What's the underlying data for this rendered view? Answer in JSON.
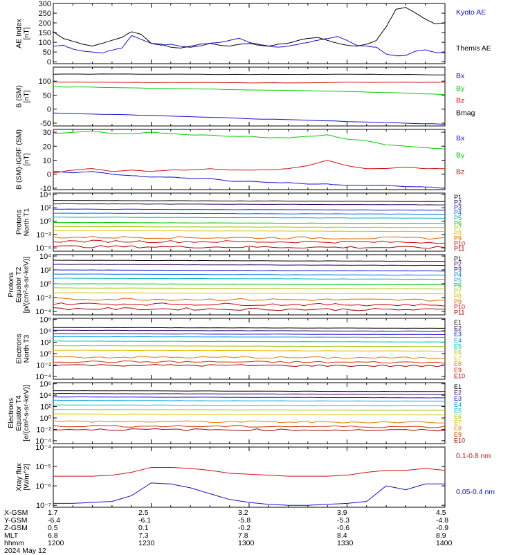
{
  "colors": {
    "black": "#000000",
    "blue": "#1010d0",
    "green": "#00cc00",
    "red": "#d01010",
    "axis": "#000000"
  },
  "chart_data": [
    {
      "type": "line",
      "id": "ae",
      "ylabel": [
        "AE Index",
        "[nT]"
      ],
      "ylim": [
        -10,
        300
      ],
      "yticks": [
        0,
        50,
        100,
        150,
        200,
        250,
        300
      ],
      "ytick_labels": [
        "0",
        "50",
        "100",
        "150",
        "200",
        "250",
        "300"
      ],
      "x": [
        0,
        5,
        10,
        15,
        20,
        25,
        30,
        35,
        40,
        45,
        50,
        55,
        60,
        65,
        70,
        75,
        80,
        85,
        90,
        95,
        100,
        105,
        110,
        115,
        120,
        125,
        130,
        135,
        140,
        145,
        150,
        155,
        160,
        165,
        170,
        175,
        180,
        185,
        190,
        195,
        200
      ],
      "series": [
        {
          "name": "Kyoto AE",
          "color": "blue",
          "values": [
            80,
            85,
            65,
            55,
            50,
            45,
            60,
            70,
            135,
            115,
            95,
            85,
            90,
            80,
            75,
            80,
            95,
            100,
            110,
            120,
            100,
            90,
            80,
            75,
            80,
            90,
            100,
            110,
            120,
            130,
            110,
            85,
            80,
            75,
            40,
            30,
            32,
            55,
            62,
            48,
            45
          ]
        },
        {
          "name": "Themis AE",
          "color": "black",
          "values": [
            155,
            120,
            105,
            90,
            80,
            95,
            110,
            125,
            155,
            140,
            95,
            90,
            75,
            70,
            80,
            90,
            95,
            85,
            80,
            90,
            95,
            85,
            80,
            90,
            95,
            110,
            120,
            125,
            110,
            95,
            85,
            80,
            90,
            110,
            180,
            270,
            280,
            250,
            220,
            195,
            200
          ]
        }
      ]
    },
    {
      "type": "line",
      "id": "bsm",
      "ylabel": [
        "B (SM)",
        "[nT]"
      ],
      "ylim": [
        -60,
        150
      ],
      "yticks": [
        -50,
        0,
        50,
        100
      ],
      "ytick_labels": [
        "-50",
        "0",
        "50",
        "100"
      ],
      "x": [
        0,
        25,
        50,
        75,
        100,
        125,
        150,
        175,
        200
      ],
      "series": [
        {
          "name": "Bx",
          "color": "blue",
          "values": [
            -14,
            -18,
            -22,
            -28,
            -34,
            -39,
            -44,
            -49,
            -54
          ]
        },
        {
          "name": "By",
          "color": "green",
          "values": [
            80,
            78,
            75,
            72,
            69,
            67,
            63,
            58,
            52
          ]
        },
        {
          "name": "Bz",
          "color": "red",
          "values": [
            97,
            96,
            95,
            95,
            94,
            94,
            96,
            96,
            96
          ]
        },
        {
          "name": "Bmag",
          "color": "black",
          "values": [
            125,
            125,
            125,
            124,
            124,
            124,
            125,
            124,
            122
          ]
        }
      ]
    },
    {
      "type": "line",
      "id": "bdiff",
      "ylabel": [
        "B (SM)-IGRF (SM)",
        "[nT]"
      ],
      "ylim": [
        -11,
        32
      ],
      "yticks": [
        -10,
        0,
        10,
        20,
        30
      ],
      "ytick_labels": [
        "-10",
        "0",
        "10",
        "20",
        "30"
      ],
      "x": [
        0,
        10,
        20,
        30,
        40,
        50,
        60,
        70,
        80,
        90,
        100,
        110,
        120,
        130,
        140,
        150,
        160,
        170,
        180,
        190,
        200
      ],
      "series": [
        {
          "name": "Bx",
          "color": "blue",
          "values": [
            2,
            1,
            2,
            0,
            -1,
            -2,
            -2,
            -3,
            -3,
            -5,
            -5,
            -6,
            -6,
            -7,
            -7,
            -8,
            -8,
            -8,
            -9,
            -9,
            -10
          ]
        },
        {
          "name": "By",
          "color": "green",
          "values": [
            29,
            30,
            31,
            29,
            29,
            30,
            29,
            28,
            28,
            27,
            27,
            26,
            26,
            27,
            28,
            25,
            24,
            21,
            20,
            19,
            18
          ]
        },
        {
          "name": "Bz",
          "color": "red",
          "values": [
            1,
            3,
            4,
            2,
            3,
            2,
            3,
            3,
            4,
            3,
            3,
            3,
            4,
            6,
            10,
            6,
            4,
            4,
            5,
            4,
            4
          ]
        }
      ]
    },
    {
      "type": "line",
      "id": "p_north",
      "log": true,
      "ylabel": [
        "Protons",
        "North T1"
      ],
      "ylim": [
        -4.5,
        4.2
      ],
      "ytick_labels": [
        "10⁴",
        "10²",
        "10⁰",
        "10⁻²",
        "10⁻⁴"
      ],
      "ytick_exps": [
        4,
        2,
        0,
        -2,
        -4
      ],
      "channels": [
        "P1",
        "P2",
        "P3",
        "P4",
        "P5",
        "P6",
        "P7",
        "P8",
        "P9",
        "P10",
        "P11"
      ],
      "channel_colors": [
        "#000000",
        "#300060",
        "#1010d0",
        "#0070e0",
        "#00b0c0",
        "#00c000",
        "#a0c000",
        "#e0c000",
        "#e06000",
        "#d00000",
        "#a00000"
      ],
      "levels": [
        3.1,
        2.6,
        1.8,
        1.2,
        0.6,
        -0.2,
        -0.8,
        -1.4,
        -2.4,
        -3.0,
        -3.8
      ]
    },
    {
      "type": "line",
      "id": "p_equator",
      "log": true,
      "ylabel": [
        "Protons",
        "Equator T2",
        "[p/(cm²-s-sr-keV)]"
      ],
      "ylim": [
        -4.5,
        4.2
      ],
      "ytick_labels": [
        "10⁴",
        "10²",
        "10⁰",
        "10⁻²",
        "10⁻⁴"
      ],
      "ytick_exps": [
        4,
        2,
        0,
        -2,
        -4
      ],
      "channels": [
        "P1",
        "P2",
        "P3",
        "P4",
        "P5",
        "P6",
        "P7",
        "P8",
        "P9",
        "P10",
        "P11"
      ],
      "channel_colors": [
        "#000000",
        "#300060",
        "#1010d0",
        "#0070e0",
        "#00b0c0",
        "#00c000",
        "#a0c000",
        "#e0c000",
        "#e06000",
        "#d00000",
        "#a00000"
      ],
      "levels": [
        3.4,
        2.8,
        2.0,
        1.4,
        0.8,
        0.0,
        -0.6,
        -1.3,
        -2.2,
        -2.9,
        -3.6
      ]
    },
    {
      "type": "line",
      "id": "e_north",
      "log": true,
      "ylabel": [
        "Electrons",
        "North T3"
      ],
      "ylim": [
        -4.5,
        6.2
      ],
      "ytick_labels": [
        "10⁶",
        "10⁴",
        "10²",
        "10⁰",
        "10⁻²",
        "10⁻⁴"
      ],
      "ytick_exps": [
        6,
        4,
        2,
        0,
        -2,
        -4
      ],
      "channels": [
        "E1",
        "E2",
        "E3",
        "E4",
        "E5",
        "E6",
        "E7",
        "E8",
        "E9",
        "E10"
      ],
      "channel_colors": [
        "#000000",
        "#300060",
        "#1010d0",
        "#00a0e0",
        "#00c0c0",
        "#a0c000",
        "#e0c000",
        "#e08000",
        "#d03000",
        "#a00000"
      ],
      "levels": [
        4.6,
        4.1,
        3.5,
        3.0,
        2.2,
        1.4,
        0.6,
        -0.6,
        -1.4,
        -2.0
      ]
    },
    {
      "type": "line",
      "id": "e_equator",
      "log": true,
      "ylabel": [
        "Electrons",
        "Equator T4",
        "[e/(cm²-s-sr-keV)]"
      ],
      "ylim": [
        -4.5,
        6.2
      ],
      "ytick_labels": [
        "10⁶",
        "10⁴",
        "10²",
        "10⁰",
        "10⁻²",
        "10⁻⁴"
      ],
      "ytick_exps": [
        6,
        4,
        2,
        0,
        -2,
        -4
      ],
      "channels": [
        "E1",
        "E2",
        "E3",
        "E4",
        "E5",
        "E6",
        "E7",
        "E8",
        "E9",
        "E10"
      ],
      "channel_colors": [
        "#000000",
        "#300060",
        "#1010d0",
        "#00a0e0",
        "#00c0c0",
        "#a0c000",
        "#e0c000",
        "#e08000",
        "#d03000",
        "#a00000"
      ],
      "levels": [
        4.8,
        4.3,
        3.7,
        3.1,
        2.3,
        1.5,
        0.7,
        -0.6,
        -1.4,
        -2.0
      ]
    },
    {
      "type": "line",
      "id": "xray",
      "log": true,
      "ylabel": [
        "Xray flux",
        "[W/m^2]"
      ],
      "ylim": [
        -7.1,
        -4.0
      ],
      "ytick_labels": [
        "10⁻⁴",
        "10⁻⁵",
        "10⁻⁶",
        "10⁻⁷"
      ],
      "ytick_exps": [
        -4,
        -5,
        -6,
        -7
      ],
      "x": [
        0,
        10,
        20,
        30,
        40,
        50,
        60,
        70,
        80,
        90,
        100,
        110,
        120,
        130,
        140,
        150,
        160,
        170,
        180,
        190,
        200
      ],
      "series": [
        {
          "name": "0.1-0.8 nm",
          "color": "red",
          "values": [
            -5.5,
            -5.5,
            -5.5,
            -5.45,
            -5.3,
            -5.05,
            -5.05,
            -5.1,
            -5.2,
            -5.35,
            -5.4,
            -5.45,
            -5.5,
            -5.5,
            -5.5,
            -5.45,
            -5.3,
            -5.2,
            -5.2,
            -5.1,
            -5.2
          ]
        },
        {
          "name": "0.05-0.4 nm",
          "color": "blue",
          "values": [
            -6.9,
            -6.9,
            -6.85,
            -6.8,
            -6.5,
            -5.85,
            -5.9,
            -6.1,
            -6.4,
            -6.7,
            -6.85,
            -6.95,
            -7.0,
            -7.0,
            -6.95,
            -6.9,
            -6.8,
            -6.0,
            -6.2,
            -5.9,
            -5.9
          ]
        }
      ]
    }
  ],
  "legends": {
    "ae": [
      {
        "label": "Kyoto AE",
        "color": "#1010d0"
      },
      {
        "label": "Themis AE",
        "color": "#000000"
      }
    ],
    "bsm": [
      {
        "label": "Bx",
        "color": "#1010d0"
      },
      {
        "label": "By",
        "color": "#00cc00"
      },
      {
        "label": "Bz",
        "color": "#d01010"
      },
      {
        "label": "Bmag",
        "color": "#000000"
      }
    ],
    "bdiff": [
      {
        "label": "Bx",
        "color": "#1010d0"
      },
      {
        "label": "By",
        "color": "#00cc00"
      },
      {
        "label": "Bz",
        "color": "#d01010"
      }
    ],
    "xray": [
      {
        "label": "0.1-0.8 nm",
        "color": "#d01010"
      },
      {
        "label": "0.05-0.4 nm",
        "color": "#1010d0"
      }
    ]
  },
  "footer": {
    "rows": [
      {
        "label": "X-GSM",
        "values": [
          "1.7",
          "2.5",
          "3.2",
          "3.9",
          "4.5"
        ]
      },
      {
        "label": "Y-GSM",
        "values": [
          "-6.4",
          "-6.1",
          "-5.8",
          "-5.3",
          "-4.8"
        ]
      },
      {
        "label": "Z-GSM",
        "values": [
          "0.5",
          "0.1",
          "-0.2",
          "-0.6",
          "-0.9"
        ]
      },
      {
        "label": "MLT",
        "values": [
          "6.8",
          "7.3",
          "7.8",
          "8.4",
          "8.9"
        ]
      },
      {
        "label": "hhmm",
        "values": [
          "1200",
          "1230",
          "1300",
          "1330",
          "1400"
        ]
      }
    ],
    "date": "2024 May 12"
  }
}
